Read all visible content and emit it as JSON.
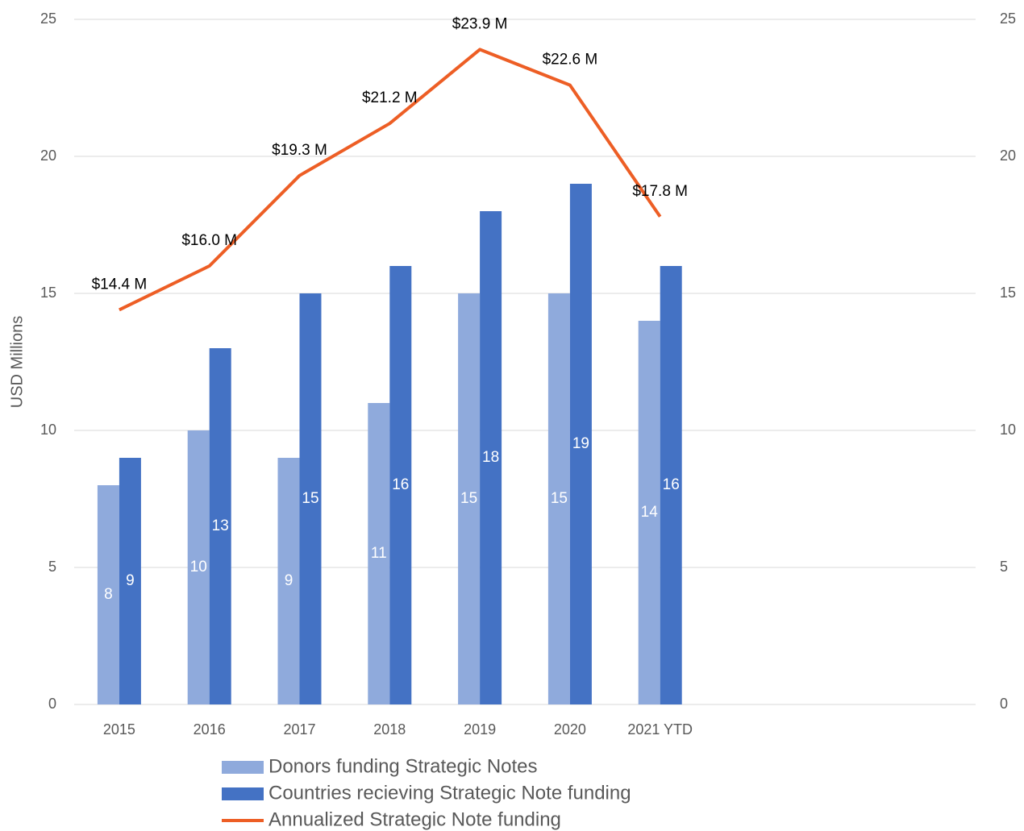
{
  "chart_data": {
    "type": "bar_line",
    "y_label": "USD Millions",
    "categories": [
      "2015",
      "2016",
      "2017",
      "2018",
      "2019",
      "2020",
      "2021 YTD",
      null,
      null,
      null
    ],
    "series": [
      {
        "name": "Donors funding Strategic Notes",
        "type": "bar",
        "axis": "y2",
        "color": "#8faadc",
        "values": [
          8,
          10,
          9,
          11,
          15,
          15,
          14,
          null,
          null,
          null
        ]
      },
      {
        "name": "Countries recieving Strategic Note funding",
        "type": "bar",
        "axis": "y2",
        "color": "#4472c4",
        "values": [
          9,
          13,
          15,
          16,
          18,
          19,
          16,
          null,
          null,
          null
        ]
      },
      {
        "name": "Annualized Strategic Note funding",
        "type": "line",
        "color": "#ed5e25",
        "values": [
          14.4,
          16.0,
          19.3,
          21.2,
          23.9,
          22.6,
          17.8,
          null,
          null,
          null
        ],
        "value_labels": [
          "$14.4 M",
          "$16.0 M",
          "$19.3 M",
          "$21.2 M",
          "$23.9 M",
          "$22.6 M",
          "$17.8 M",
          null,
          null,
          null
        ]
      }
    ],
    "ylim": [
      0,
      25
    ],
    "yticks": [
      0,
      5,
      10,
      15,
      20,
      25
    ],
    "y2lim": [
      0,
      25
    ],
    "y2ticks": [
      0,
      5,
      10,
      15,
      20,
      25
    ],
    "grid": true,
    "legend": "bottom"
  }
}
